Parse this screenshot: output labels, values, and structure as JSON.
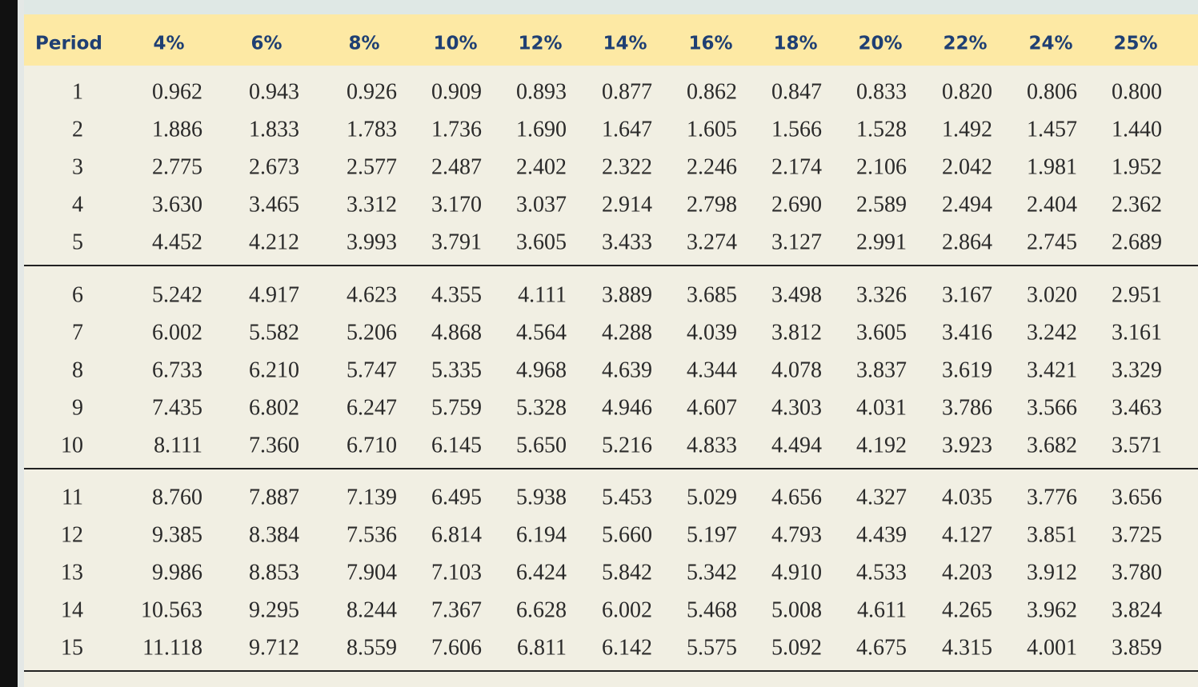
{
  "table": {
    "header": [
      "Period",
      "4%",
      "6%",
      "8%",
      "10%",
      "12%",
      "14%",
      "16%",
      "18%",
      "20%",
      "22%",
      "24%",
      "25%"
    ],
    "rows": [
      [
        "1",
        "0.962",
        "0.943",
        "0.926",
        "0.909",
        "0.893",
        "0.877",
        "0.862",
        "0.847",
        "0.833",
        "0.820",
        "0.806",
        "0.800"
      ],
      [
        "2",
        "1.886",
        "1.833",
        "1.783",
        "1.736",
        "1.690",
        "1.647",
        "1.605",
        "1.566",
        "1.528",
        "1.492",
        "1.457",
        "1.440"
      ],
      [
        "3",
        "2.775",
        "2.673",
        "2.577",
        "2.487",
        "2.402",
        "2.322",
        "2.246",
        "2.174",
        "2.106",
        "2.042",
        "1.981",
        "1.952"
      ],
      [
        "4",
        "3.630",
        "3.465",
        "3.312",
        "3.170",
        "3.037",
        "2.914",
        "2.798",
        "2.690",
        "2.589",
        "2.494",
        "2.404",
        "2.362"
      ],
      [
        "5",
        "4.452",
        "4.212",
        "3.993",
        "3.791",
        "3.605",
        "3.433",
        "3.274",
        "3.127",
        "2.991",
        "2.864",
        "2.745",
        "2.689"
      ],
      [
        "6",
        "5.242",
        "4.917",
        "4.623",
        "4.355",
        "4.111",
        "3.889",
        "3.685",
        "3.498",
        "3.326",
        "3.167",
        "3.020",
        "2.951"
      ],
      [
        "7",
        "6.002",
        "5.582",
        "5.206",
        "4.868",
        "4.564",
        "4.288",
        "4.039",
        "3.812",
        "3.605",
        "3.416",
        "3.242",
        "3.161"
      ],
      [
        "8",
        "6.733",
        "6.210",
        "5.747",
        "5.335",
        "4.968",
        "4.639",
        "4.344",
        "4.078",
        "3.837",
        "3.619",
        "3.421",
        "3.329"
      ],
      [
        "9",
        "7.435",
        "6.802",
        "6.247",
        "5.759",
        "5.328",
        "4.946",
        "4.607",
        "4.303",
        "4.031",
        "3.786",
        "3.566",
        "3.463"
      ],
      [
        "10",
        "8.111",
        "7.360",
        "6.710",
        "6.145",
        "5.650",
        "5.216",
        "4.833",
        "4.494",
        "4.192",
        "3.923",
        "3.682",
        "3.571"
      ],
      [
        "11",
        "8.760",
        "7.887",
        "7.139",
        "6.495",
        "5.938",
        "5.453",
        "5.029",
        "4.656",
        "4.327",
        "4.035",
        "3.776",
        "3.656"
      ],
      [
        "12",
        "9.385",
        "8.384",
        "7.536",
        "6.814",
        "6.194",
        "5.660",
        "5.197",
        "4.793",
        "4.439",
        "4.127",
        "3.851",
        "3.725"
      ],
      [
        "13",
        "9.986",
        "8.853",
        "7.904",
        "7.103",
        "6.424",
        "5.842",
        "5.342",
        "4.910",
        "4.533",
        "4.203",
        "3.912",
        "3.780"
      ],
      [
        "14",
        "10.563",
        "9.295",
        "8.244",
        "7.367",
        "6.628",
        "6.002",
        "5.468",
        "5.008",
        "4.611",
        "4.265",
        "3.962",
        "3.824"
      ],
      [
        "15",
        "11.118",
        "9.712",
        "8.559",
        "7.606",
        "6.811",
        "6.142",
        "5.575",
        "5.092",
        "4.675",
        "4.315",
        "4.001",
        "3.859"
      ]
    ]
  }
}
